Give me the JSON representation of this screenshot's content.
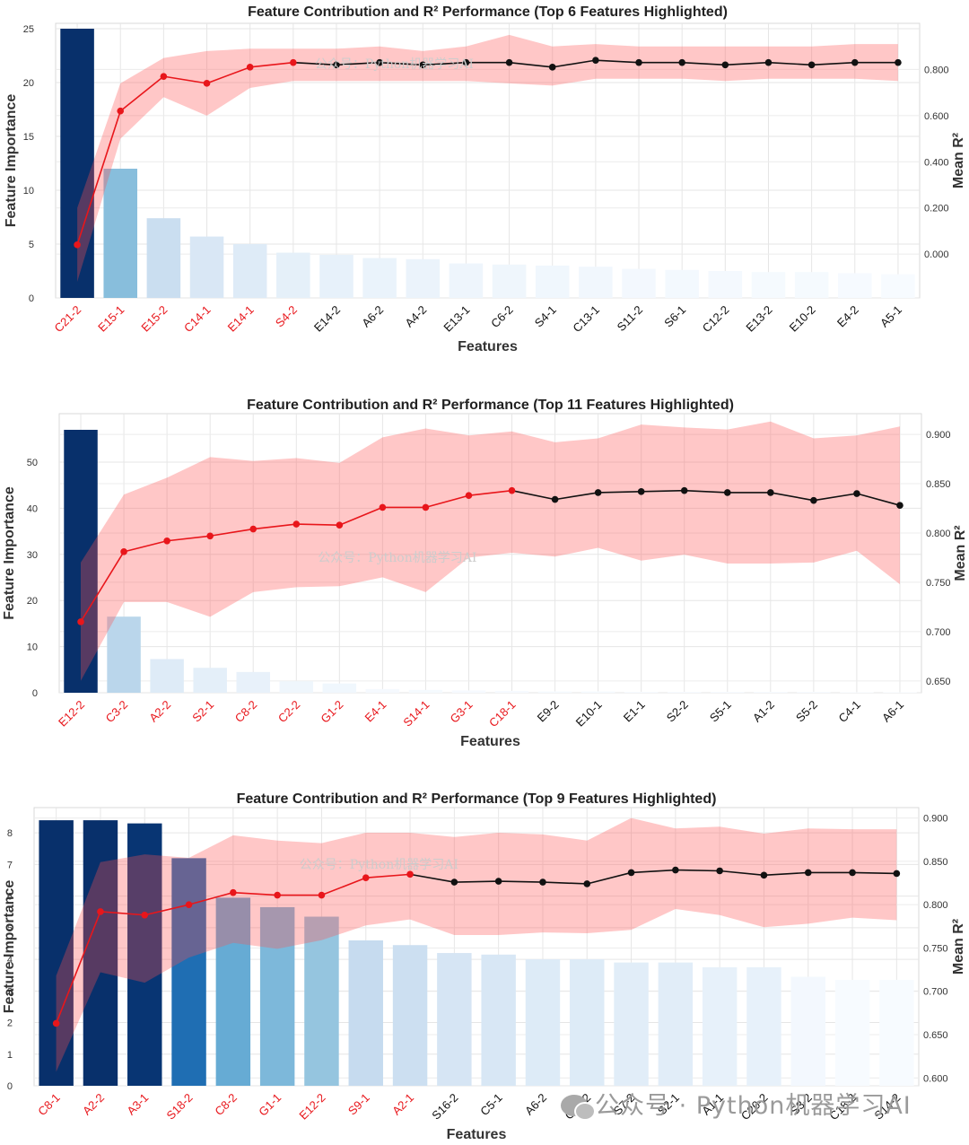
{
  "watermark_brand": "公众号 · Python机器学习AI",
  "chart_data": [
    {
      "type": "bar+line",
      "title": "Feature Contribution and R² Performance (Top 6 Features Highlighted)",
      "xlabel": "Features",
      "ylabel": "Feature Importance",
      "y2label": "Mean R²",
      "watermark": "公众号：Python机器学习AI",
      "highlight_count": 6,
      "ylim": [
        0,
        25.5
      ],
      "y_ticks": [
        0,
        5,
        10,
        15,
        20,
        25
      ],
      "y2lim": [
        -0.19,
        1.0
      ],
      "y2_ticks": [
        "0.000",
        "0.200",
        "0.400",
        "0.600",
        "0.800"
      ],
      "y2_tick_values": [
        0,
        0.2,
        0.4,
        0.6,
        0.8
      ],
      "categories": [
        "C21-2",
        "E15-1",
        "E15-2",
        "C14-1",
        "E14-1",
        "S4-2",
        "E14-2",
        "A6-2",
        "A4-2",
        "E13-1",
        "C6-2",
        "S4-1",
        "C13-1",
        "S11-2",
        "S6-1",
        "C12-2",
        "E13-2",
        "E10-2",
        "E4-2",
        "A5-1"
      ],
      "importance": [
        25.0,
        12.0,
        7.4,
        5.7,
        5.0,
        4.2,
        4.0,
        3.7,
        3.6,
        3.2,
        3.1,
        3.0,
        2.9,
        2.7,
        2.6,
        2.5,
        2.4,
        2.4,
        2.3,
        2.2
      ],
      "mean_r2": [
        0.04,
        0.62,
        0.77,
        0.74,
        0.81,
        0.83,
        0.82,
        0.83,
        0.82,
        0.83,
        0.83,
        0.81,
        0.84,
        0.83,
        0.83,
        0.82,
        0.83,
        0.82,
        0.83,
        0.83
      ],
      "r2_lower": [
        -0.12,
        0.5,
        0.68,
        0.6,
        0.72,
        0.75,
        0.75,
        0.75,
        0.75,
        0.75,
        0.74,
        0.73,
        0.76,
        0.76,
        0.76,
        0.75,
        0.76,
        0.76,
        0.76,
        0.75
      ],
      "r2_upper": [
        0.2,
        0.74,
        0.85,
        0.88,
        0.89,
        0.89,
        0.89,
        0.9,
        0.88,
        0.9,
        0.95,
        0.9,
        0.91,
        0.9,
        0.9,
        0.9,
        0.9,
        0.9,
        0.91,
        0.91
      ]
    },
    {
      "type": "bar+line",
      "title": "Feature Contribution and R² Performance (Top 11 Features Highlighted)",
      "xlabel": "Features",
      "ylabel": "Feature Importance",
      "y2label": "Mean R²",
      "watermark": "公众号：Python机器学习AI",
      "highlight_count": 11,
      "ylim": [
        0,
        60.5
      ],
      "y_ticks": [
        0,
        10,
        20,
        30,
        40,
        50
      ],
      "y2lim": [
        0.638,
        0.921
      ],
      "y2_ticks": [
        "0.650",
        "0.700",
        "0.750",
        "0.800",
        "0.850",
        "0.900"
      ],
      "y2_tick_values": [
        0.65,
        0.7,
        0.75,
        0.8,
        0.85,
        0.9
      ],
      "categories": [
        "E12-2",
        "C3-2",
        "A2-2",
        "S2-1",
        "C8-2",
        "C2-2",
        "G1-2",
        "E4-1",
        "S14-1",
        "G3-1",
        "C18-1",
        "E9-2",
        "E10-1",
        "E1-1",
        "S2-2",
        "S5-1",
        "A1-2",
        "S5-2",
        "C4-1",
        "A6-1"
      ],
      "importance": [
        57.0,
        16.5,
        7.3,
        5.4,
        4.5,
        2.5,
        2.0,
        0.8,
        0.6,
        0.5,
        0.4,
        0.3,
        0.3,
        0.2,
        0.2,
        0.2,
        0.2,
        0.2,
        0.1,
        0.1
      ],
      "mean_r2": [
        0.71,
        0.781,
        0.792,
        0.797,
        0.804,
        0.809,
        0.808,
        0.826,
        0.826,
        0.838,
        0.843,
        0.834,
        0.841,
        0.842,
        0.843,
        0.841,
        0.841,
        0.833,
        0.84,
        0.828
      ],
      "r2_lower": [
        0.65,
        0.73,
        0.73,
        0.715,
        0.74,
        0.745,
        0.746,
        0.755,
        0.74,
        0.775,
        0.78,
        0.776,
        0.785,
        0.772,
        0.778,
        0.769,
        0.769,
        0.77,
        0.782,
        0.748
      ],
      "r2_upper": [
        0.77,
        0.839,
        0.856,
        0.877,
        0.873,
        0.876,
        0.871,
        0.897,
        0.906,
        0.899,
        0.903,
        0.892,
        0.896,
        0.91,
        0.907,
        0.905,
        0.913,
        0.896,
        0.899,
        0.908
      ]
    },
    {
      "type": "bar+line",
      "title": "Feature Contribution and R² Performance (Top 9 Features Highlighted)",
      "xlabel": "Features",
      "ylabel": "Feature Importance",
      "y2label": "Mean R²",
      "watermark": "公众号：Python机器学习AI",
      "highlight_count": 9,
      "ylim": [
        0,
        8.8
      ],
      "y_ticks": [
        0,
        1,
        2,
        3,
        4,
        5,
        6,
        7,
        8
      ],
      "y2lim": [
        0.591,
        0.912
      ],
      "y2_ticks": [
        "0.600",
        "0.650",
        "0.700",
        "0.750",
        "0.800",
        "0.850",
        "0.900"
      ],
      "y2_tick_values": [
        0.6,
        0.65,
        0.7,
        0.75,
        0.8,
        0.85,
        0.9
      ],
      "categories": [
        "C8-1",
        "A2-2",
        "A3-1",
        "S18-2",
        "C8-2",
        "G1-1",
        "E12-2",
        "S9-1",
        "A2-1",
        "S16-2",
        "C5-1",
        "A6-2",
        "C11-2",
        "S7-2",
        "S2-1",
        "A1-1",
        "C20-2",
        "S3-2",
        "C18-2",
        "S14-2"
      ],
      "importance": [
        8.4,
        8.4,
        8.3,
        7.2,
        5.95,
        5.65,
        5.35,
        4.6,
        4.45,
        4.2,
        4.15,
        4.0,
        4.0,
        3.9,
        3.9,
        3.75,
        3.75,
        3.45,
        3.35,
        3.35
      ],
      "mean_r2": [
        0.663,
        0.792,
        0.788,
        0.8,
        0.814,
        0.811,
        0.811,
        0.831,
        0.835,
        0.826,
        0.827,
        0.826,
        0.824,
        0.837,
        0.84,
        0.839,
        0.834,
        0.837,
        0.837,
        0.836
      ],
      "r2_lower": [
        0.607,
        0.722,
        0.71,
        0.739,
        0.756,
        0.749,
        0.759,
        0.776,
        0.783,
        0.765,
        0.765,
        0.768,
        0.767,
        0.771,
        0.795,
        0.788,
        0.774,
        0.778,
        0.785,
        0.782
      ],
      "r2_upper": [
        0.718,
        0.849,
        0.858,
        0.854,
        0.88,
        0.874,
        0.871,
        0.883,
        0.883,
        0.878,
        0.883,
        0.881,
        0.874,
        0.9,
        0.888,
        0.89,
        0.882,
        0.888,
        0.887,
        0.887
      ]
    }
  ]
}
